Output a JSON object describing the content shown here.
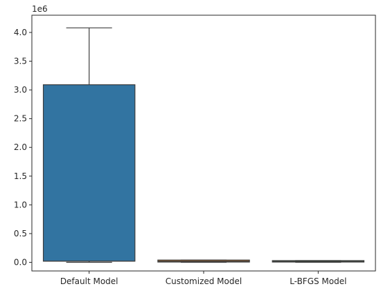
{
  "chart_data": {
    "type": "box",
    "title": "",
    "xlabel": "",
    "ylabel": "",
    "y_scale_label": "1e6",
    "ylim": [
      -150000,
      4300000
    ],
    "yticks": [
      0.0,
      0.5,
      1.0,
      1.5,
      2.0,
      2.5,
      3.0,
      3.5,
      4.0
    ],
    "ytick_labels": [
      "0.0",
      "0.5",
      "1.0",
      "1.5",
      "2.0",
      "2.5",
      "3.0",
      "3.5",
      "4.0"
    ],
    "categories": [
      "Default Model",
      "Customized Model",
      "L-BFGS Model"
    ],
    "boxes": [
      {
        "category": "Default Model",
        "whisker_low": 0,
        "q1": 20000,
        "median": 20000,
        "q3": 3090000,
        "whisker_high": 4080000,
        "color": "#3274a1"
      },
      {
        "category": "Customized Model",
        "whisker_low": 0,
        "q1": 5000,
        "median": 20000,
        "q3": 40000,
        "whisker_high": 40000,
        "color": "#e1812c"
      },
      {
        "category": "L-BFGS Model",
        "whisker_low": 0,
        "q1": 5000,
        "median": 15000,
        "q3": 30000,
        "whisker_high": 30000,
        "color": "#3a923a"
      }
    ],
    "grid": false
  }
}
